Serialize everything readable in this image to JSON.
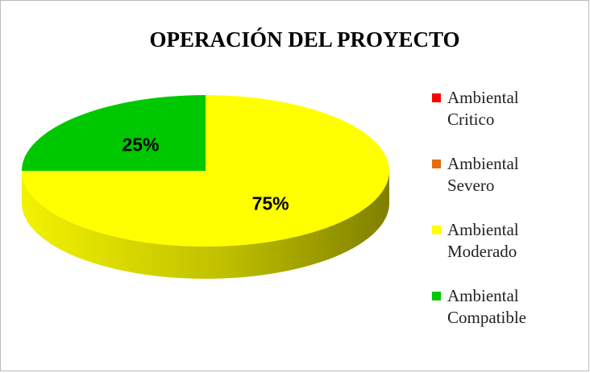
{
  "chart_data": {
    "type": "pie",
    "title": "OPERACIÓN DEL PROYECTO",
    "categories": [
      "Ambiental Critico",
      "Ambiental Severo",
      "Ambiental Moderado",
      "Ambiental Compatible"
    ],
    "values": [
      0,
      0,
      75,
      25
    ],
    "value_labels": [
      null,
      null,
      "75%",
      "25%"
    ],
    "colors": [
      "#ff0000",
      "#e46c0a",
      "#ffff00",
      "#00c800"
    ],
    "legend": "right"
  }
}
